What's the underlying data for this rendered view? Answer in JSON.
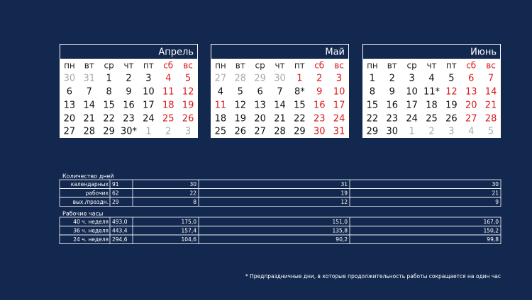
{
  "months": [
    {
      "name": "Апрель",
      "weekdays": [
        {
          "text": "пн",
          "color": "#222"
        },
        {
          "text": "вт",
          "color": "#222"
        },
        {
          "text": "ср",
          "color": "#222"
        },
        {
          "text": "чт",
          "color": "#222"
        },
        {
          "text": "пт",
          "color": "#222"
        },
        {
          "text": "сб",
          "color": "#d7191c"
        },
        {
          "text": "вс",
          "color": "#d7191c"
        }
      ],
      "weeks": [
        [
          {
            "text": "30",
            "color": "#aaa"
          },
          {
            "text": "31",
            "color": "#aaa"
          },
          {
            "text": "1",
            "color": "#111"
          },
          {
            "text": "2",
            "color": "#111"
          },
          {
            "text": "3",
            "color": "#111"
          },
          {
            "text": "4",
            "color": "#d7191c"
          },
          {
            "text": "5",
            "color": "#d7191c"
          }
        ],
        [
          {
            "text": "6",
            "color": "#111"
          },
          {
            "text": "7",
            "color": "#111"
          },
          {
            "text": "8",
            "color": "#111"
          },
          {
            "text": "9",
            "color": "#111"
          },
          {
            "text": "10",
            "color": "#111"
          },
          {
            "text": "11",
            "color": "#d7191c"
          },
          {
            "text": "12",
            "color": "#d7191c"
          }
        ],
        [
          {
            "text": "13",
            "color": "#111"
          },
          {
            "text": "14",
            "color": "#111"
          },
          {
            "text": "15",
            "color": "#111"
          },
          {
            "text": "16",
            "color": "#111"
          },
          {
            "text": "17",
            "color": "#111"
          },
          {
            "text": "18",
            "color": "#d7191c"
          },
          {
            "text": "19",
            "color": "#d7191c"
          }
        ],
        [
          {
            "text": "20",
            "color": "#111"
          },
          {
            "text": "21",
            "color": "#111"
          },
          {
            "text": "22",
            "color": "#111"
          },
          {
            "text": "23",
            "color": "#111"
          },
          {
            "text": "24",
            "color": "#111"
          },
          {
            "text": "25",
            "color": "#d7191c"
          },
          {
            "text": "26",
            "color": "#d7191c"
          }
        ],
        [
          {
            "text": "27",
            "color": "#111"
          },
          {
            "text": "28",
            "color": "#111"
          },
          {
            "text": "29",
            "color": "#111"
          },
          {
            "text": "30*",
            "color": "#111"
          },
          {
            "text": "1",
            "color": "#aaa"
          },
          {
            "text": "2",
            "color": "#aaa"
          },
          {
            "text": "3",
            "color": "#aaa"
          }
        ]
      ]
    },
    {
      "name": "Май",
      "weekdays": [
        {
          "text": "пн",
          "color": "#222"
        },
        {
          "text": "вт",
          "color": "#222"
        },
        {
          "text": "ср",
          "color": "#222"
        },
        {
          "text": "чт",
          "color": "#222"
        },
        {
          "text": "пт",
          "color": "#222"
        },
        {
          "text": "сб",
          "color": "#d7191c"
        },
        {
          "text": "вс",
          "color": "#d7191c"
        }
      ],
      "weeks": [
        [
          {
            "text": "27",
            "color": "#aaa"
          },
          {
            "text": "28",
            "color": "#aaa"
          },
          {
            "text": "29",
            "color": "#aaa"
          },
          {
            "text": "30",
            "color": "#aaa"
          },
          {
            "text": "1",
            "color": "#d7191c"
          },
          {
            "text": "2",
            "color": "#d7191c"
          },
          {
            "text": "3",
            "color": "#d7191c"
          }
        ],
        [
          {
            "text": "4",
            "color": "#111"
          },
          {
            "text": "5",
            "color": "#111"
          },
          {
            "text": "6",
            "color": "#111"
          },
          {
            "text": "7",
            "color": "#111"
          },
          {
            "text": "8*",
            "color": "#111"
          },
          {
            "text": "9",
            "color": "#d7191c"
          },
          {
            "text": "10",
            "color": "#d7191c"
          }
        ],
        [
          {
            "text": "11",
            "color": "#d7191c"
          },
          {
            "text": "12",
            "color": "#111"
          },
          {
            "text": "13",
            "color": "#111"
          },
          {
            "text": "14",
            "color": "#111"
          },
          {
            "text": "15",
            "color": "#111"
          },
          {
            "text": "16",
            "color": "#d7191c"
          },
          {
            "text": "17",
            "color": "#d7191c"
          }
        ],
        [
          {
            "text": "18",
            "color": "#111"
          },
          {
            "text": "19",
            "color": "#111"
          },
          {
            "text": "20",
            "color": "#111"
          },
          {
            "text": "21",
            "color": "#111"
          },
          {
            "text": "22",
            "color": "#111"
          },
          {
            "text": "23",
            "color": "#d7191c"
          },
          {
            "text": "24",
            "color": "#d7191c"
          }
        ],
        [
          {
            "text": "25",
            "color": "#111"
          },
          {
            "text": "26",
            "color": "#111"
          },
          {
            "text": "27",
            "color": "#111"
          },
          {
            "text": "28",
            "color": "#111"
          },
          {
            "text": "29",
            "color": "#111"
          },
          {
            "text": "30",
            "color": "#d7191c"
          },
          {
            "text": "31",
            "color": "#d7191c"
          }
        ]
      ]
    },
    {
      "name": "Июнь",
      "weekdays": [
        {
          "text": "пн",
          "color": "#222"
        },
        {
          "text": "вт",
          "color": "#222"
        },
        {
          "text": "ср",
          "color": "#222"
        },
        {
          "text": "чт",
          "color": "#222"
        },
        {
          "text": "пт",
          "color": "#222"
        },
        {
          "text": "сб",
          "color": "#d7191c"
        },
        {
          "text": "вс",
          "color": "#d7191c"
        }
      ],
      "weeks": [
        [
          {
            "text": "1",
            "color": "#111"
          },
          {
            "text": "2",
            "color": "#111"
          },
          {
            "text": "3",
            "color": "#111"
          },
          {
            "text": "4",
            "color": "#111"
          },
          {
            "text": "5",
            "color": "#111"
          },
          {
            "text": "6",
            "color": "#d7191c"
          },
          {
            "text": "7",
            "color": "#d7191c"
          }
        ],
        [
          {
            "text": "8",
            "color": "#111"
          },
          {
            "text": "9",
            "color": "#111"
          },
          {
            "text": "10",
            "color": "#111"
          },
          {
            "text": "11*",
            "color": "#111"
          },
          {
            "text": "12",
            "color": "#d7191c"
          },
          {
            "text": "13",
            "color": "#d7191c"
          },
          {
            "text": "14",
            "color": "#d7191c"
          }
        ],
        [
          {
            "text": "15",
            "color": "#111"
          },
          {
            "text": "16",
            "color": "#111"
          },
          {
            "text": "17",
            "color": "#111"
          },
          {
            "text": "18",
            "color": "#111"
          },
          {
            "text": "19",
            "color": "#111"
          },
          {
            "text": "20",
            "color": "#d7191c"
          },
          {
            "text": "21",
            "color": "#d7191c"
          }
        ],
        [
          {
            "text": "22",
            "color": "#111"
          },
          {
            "text": "23",
            "color": "#111"
          },
          {
            "text": "24",
            "color": "#111"
          },
          {
            "text": "25",
            "color": "#111"
          },
          {
            "text": "26",
            "color": "#111"
          },
          {
            "text": "27",
            "color": "#d7191c"
          },
          {
            "text": "28",
            "color": "#d7191c"
          }
        ],
        [
          {
            "text": "29",
            "color": "#111"
          },
          {
            "text": "30",
            "color": "#111"
          },
          {
            "text": "1",
            "color": "#aaa"
          },
          {
            "text": "2",
            "color": "#aaa"
          },
          {
            "text": "3",
            "color": "#aaa"
          },
          {
            "text": "4",
            "color": "#aaa"
          },
          {
            "text": "5",
            "color": "#aaa"
          }
        ]
      ]
    }
  ],
  "tables": [
    {
      "title": "Количество дней",
      "rows": [
        [
          "календарных",
          "91",
          "30",
          "31",
          "30"
        ],
        [
          "рабочих",
          "62",
          "22",
          "19",
          "21"
        ],
        [
          "вых./праздн.",
          "29",
          "8",
          "12",
          "9"
        ]
      ]
    },
    {
      "title": "Рабочие часы",
      "rows": [
        [
          "40 ч. неделя",
          "493,0",
          "175,0",
          "151,0",
          "167,0"
        ],
        [
          "36 ч. неделя",
          "443,4",
          "157,4",
          "135,8",
          "150,2"
        ],
        [
          "24 ч. неделя",
          "294,6",
          "104,6",
          "90,2",
          "99,8"
        ]
      ]
    }
  ],
  "footnote": "* Предпраздничные дни, в которые продолжительность работы сокращается на один час"
}
